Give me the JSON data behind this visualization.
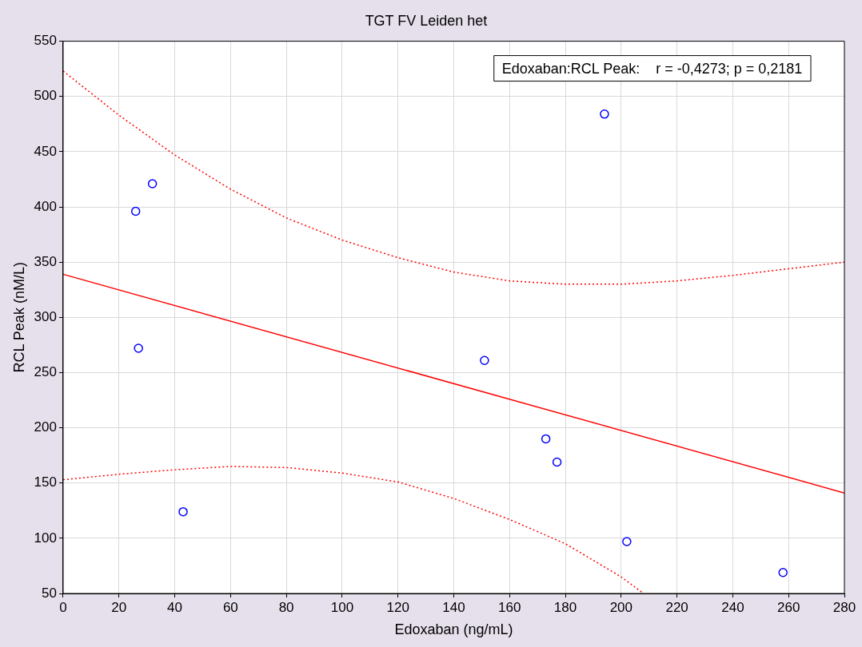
{
  "chart_data": {
    "type": "scatter",
    "title": "TGT FV Leiden het",
    "xlabel": "Edoxaban (ng/mL)",
    "ylabel": "RCL Peak (nM/L)",
    "xlim": [
      0,
      280
    ],
    "xticks": [
      0,
      20,
      40,
      60,
      80,
      100,
      120,
      140,
      160,
      180,
      200,
      220,
      240,
      260,
      280
    ],
    "ylim": [
      50,
      550
    ],
    "yticks": [
      50,
      100,
      150,
      200,
      250,
      300,
      350,
      400,
      450,
      500,
      550
    ],
    "grid": true,
    "legend": false,
    "annotations": [
      "Edoxaban:RCL Peak:    r = -0,4273; p = 0,2181"
    ],
    "series": [
      {
        "type": "scatter",
        "color": "#0000ff",
        "marker": "circle",
        "x": [
          26,
          32,
          27,
          43,
          151,
          194,
          173,
          177,
          202,
          258
        ],
        "values": [
          396,
          421,
          272,
          124,
          261,
          484,
          190,
          169,
          97,
          69
        ]
      },
      {
        "type": "line",
        "color": "#ff0000",
        "marker": "none",
        "line_style": "solid",
        "x": [
          0,
          280
        ],
        "values": [
          339,
          141
        ]
      },
      {
        "type": "line",
        "color": "#ff0000",
        "marker": "none",
        "line_style": "dotted",
        "x": [
          0,
          20,
          40,
          60,
          80,
          100,
          120,
          140,
          160,
          180,
          200,
          220,
          240,
          260,
          280
        ],
        "values": [
          523,
          483,
          447,
          416,
          390,
          370,
          354,
          341,
          333,
          330,
          330,
          333,
          338,
          344,
          350
        ]
      },
      {
        "type": "line",
        "color": "#ff0000",
        "marker": "none",
        "line_style": "dotted",
        "x": [
          0,
          20,
          40,
          60,
          80,
          100,
          120,
          140,
          160,
          180,
          200,
          208
        ],
        "values": [
          153,
          158,
          162,
          165,
          164,
          159,
          151,
          136,
          117,
          95,
          65,
          50
        ]
      }
    ]
  }
}
